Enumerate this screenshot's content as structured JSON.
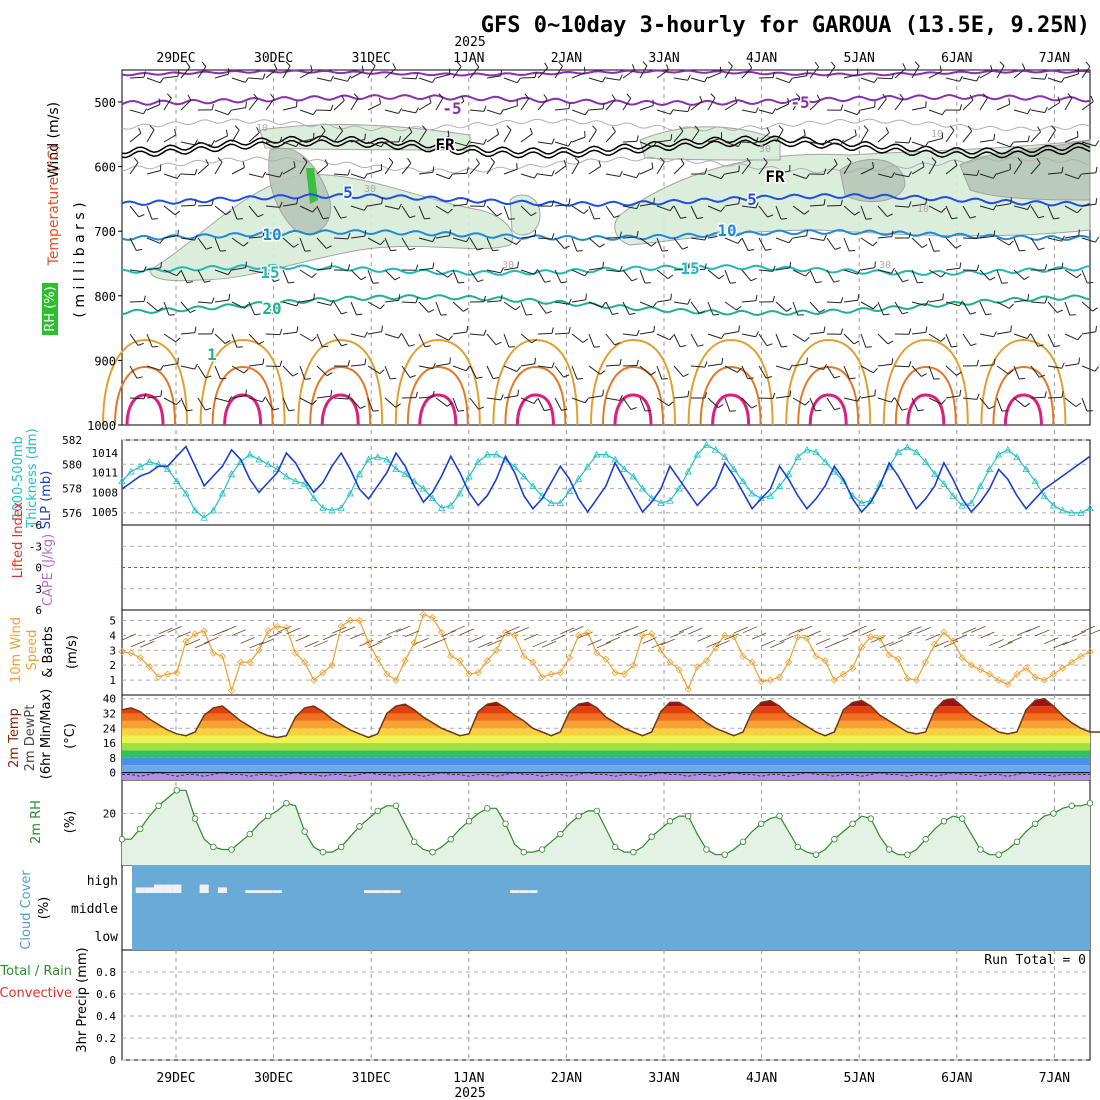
{
  "title": "GFS 0~10day 3-hourly for GAROUA (13.5E, 9.25N)",
  "year_label": "2025",
  "dates": [
    "29DEC",
    "30DEC",
    "31DEC",
    "1JAN",
    "2JAN",
    "3JAN",
    "4JAN",
    "5JAN",
    "6JAN",
    "7JAN"
  ],
  "panels": {
    "upper": {
      "ylabel_wind": "Wind (m/s)",
      "ylabel_temp": "Temperature (°C)",
      "ylabel_rh": "RH (%)",
      "ylabel_mb": "( m i l l i b a r s )",
      "pressure_ticks": [
        "500",
        "600",
        "700",
        "800",
        "900",
        "1000"
      ],
      "contour_labels": [
        "-5",
        "-5",
        "FR",
        "FR",
        "5",
        "5",
        "10",
        "10",
        "15",
        "15",
        "20",
        "1",
        "10",
        "30",
        "10",
        "30",
        "30",
        "30",
        "10"
      ]
    },
    "thick": {
      "ylabel_left": "1000-500mb",
      "ylabel_left2": "Thickness (dm)",
      "ylabel_right": "SLP (mb)",
      "thick_ticks": [
        "582",
        "580",
        "578",
        "576"
      ],
      "slp_ticks": [
        "1014",
        "1011",
        "1008",
        "1005"
      ]
    },
    "li": {
      "ylabel_li": "Lifted Index",
      "ylabel_cape": "CAPE (J/kg)",
      "ticks": [
        "-6",
        "-3",
        "0",
        "3",
        "6"
      ]
    },
    "wind10": {
      "ylabel1": "10m Wind",
      "ylabel2": "Speed",
      "ylabel3": "& Barbs",
      "units": "(m/s)",
      "ticks": [
        "5",
        "4",
        "3",
        "2",
        "1"
      ]
    },
    "temp": {
      "ylabel1": "2m Temp",
      "ylabel2": "2m DewPt",
      "ylabel3": "(6hr Min/Max)",
      "units": "(°C)",
      "ticks": [
        "40",
        "32",
        "24",
        "16",
        "8",
        "0"
      ]
    },
    "rh": {
      "ylabel": "2m RH",
      "units": "(%)",
      "ticks": [
        "20"
      ]
    },
    "cloud": {
      "ylabel": "Cloud Cover",
      "units": "(%)",
      "levels": [
        "high",
        "middle",
        "low"
      ]
    },
    "precip": {
      "ylabel_total": "Total / Rain",
      "ylabel_conv": "Convective",
      "ylabel_main": "3hr Precip (mm)",
      "run_total": "Run Total = 0",
      "ticks": [
        "0.8",
        "0.6",
        "0.4",
        "0.2",
        "0"
      ]
    }
  },
  "chart_data": {
    "type": "line",
    "x_start": "28DEC 06Z",
    "step_hours": 3,
    "series": [
      {
        "name": "1000-500mb Thickness (dm)",
        "color": "#20c0c8",
        "values": [
          578.6,
          579.4,
          579.8,
          580.2,
          580.0,
          579.6,
          578.6,
          577.6,
          576.2,
          575.6,
          576.2,
          577.6,
          579.2,
          580.2,
          580.8,
          580.4,
          580.0,
          579.6,
          579.0,
          578.6,
          578.4,
          577.2,
          576.4,
          576.2,
          576.4,
          577.6,
          579.2,
          580.4,
          580.6,
          580.4,
          579.6,
          579.2,
          578.6,
          578.0,
          577.2,
          576.4,
          576.6,
          577.6,
          579.0,
          580.2,
          580.8,
          580.8,
          580.4,
          579.8,
          579.0,
          578.2,
          577.4,
          576.8,
          576.8,
          577.8,
          578.8,
          579.8,
          580.8,
          580.8,
          580.4,
          579.6,
          579.0,
          578.0,
          577.2,
          576.8,
          577.0,
          578.0,
          579.4,
          580.8,
          581.6,
          581.2,
          580.6,
          579.6,
          578.6,
          577.6,
          577.2,
          577.4,
          578.2,
          579.2,
          580.6,
          581.2,
          581.0,
          580.2,
          579.4,
          578.6,
          577.4,
          576.8,
          577.0,
          578.4,
          579.8,
          581.0,
          581.4,
          581.0,
          580.2,
          579.2,
          578.4,
          577.4,
          576.6,
          576.8,
          578.2,
          579.6,
          580.8,
          581.2,
          580.6,
          579.6,
          578.6,
          577.4,
          576.6,
          576.2,
          576.0,
          576.0,
          576.4
        ]
      },
      {
        "name": "SLP (mb)",
        "color": "#1a3fd0",
        "values": [
          1008.5,
          1009.5,
          1010.5,
          1011.0,
          1012.0,
          1012.0,
          1013.5,
          1015.0,
          1012.0,
          1009.0,
          1010.5,
          1012.0,
          1014.5,
          1013.0,
          1010.0,
          1008.0,
          1009.5,
          1011.0,
          1014.0,
          1012.5,
          1010.0,
          1008.0,
          1009.5,
          1012.0,
          1014.0,
          1011.5,
          1008.5,
          1007.0,
          1009.0,
          1011.0,
          1014.0,
          1012.0,
          1009.0,
          1006.5,
          1008.0,
          1010.5,
          1013.5,
          1011.0,
          1008.0,
          1006.0,
          1007.5,
          1010.0,
          1013.5,
          1011.0,
          1007.5,
          1005.5,
          1007.0,
          1009.5,
          1012.0,
          1010.0,
          1007.0,
          1005.0,
          1007.0,
          1009.0,
          1012.5,
          1010.0,
          1007.5,
          1005.0,
          1006.5,
          1008.5,
          1012.0,
          1010.0,
          1008.0,
          1006.0,
          1007.5,
          1009.0,
          1012.5,
          1010.5,
          1008.0,
          1005.5,
          1007.0,
          1008.5,
          1012.0,
          1010.0,
          1007.5,
          1005.5,
          1007.0,
          1009.0,
          1012.0,
          1010.0,
          1007.0,
          1005.0,
          1006.5,
          1009.0,
          1012.5,
          1010.5,
          1008.0,
          1005.5,
          1007.0,
          1009.0,
          1012.5,
          1010.0,
          1007.0,
          1005.0,
          1006.5,
          1008.5,
          1011.5,
          1010.0,
          1007.5,
          1005.5,
          1007.0,
          1008.5,
          1009.5,
          1010.5,
          1011.5,
          1012.5,
          1013.5
        ]
      },
      {
        "name": "10m Wind Speed (m/s)",
        "color": "#f0a030",
        "values": [
          2.9,
          2.8,
          2.5,
          1.9,
          1.2,
          1.4,
          1.5,
          3.6,
          4.1,
          4.3,
          2.8,
          2.6,
          0.3,
          2.2,
          2.2,
          3.0,
          4.3,
          4.6,
          4.5,
          2.8,
          2.2,
          1.0,
          1.5,
          2.0,
          4.6,
          5.0,
          5.0,
          3.5,
          2.4,
          1.4,
          1.0,
          2.3,
          3.5,
          5.4,
          5.2,
          4.2,
          2.6,
          2.3,
          1.4,
          1.5,
          2.3,
          3.0,
          4.2,
          4.0,
          2.6,
          2.2,
          1.2,
          1.4,
          1.5,
          2.5,
          4.0,
          4.2,
          2.8,
          2.4,
          1.5,
          1.4,
          2.0,
          4.0,
          4.1,
          3.0,
          2.2,
          1.7,
          0.4,
          1.9,
          2.3,
          3.2,
          4.0,
          3.9,
          2.6,
          2.2,
          0.9,
          1.0,
          1.2,
          2.2,
          3.9,
          3.8,
          2.6,
          2.3,
          1.0,
          1.4,
          1.8,
          3.2,
          3.9,
          3.8,
          2.7,
          2.4,
          1.1,
          1.0,
          2.2,
          3.4,
          4.2,
          3.6,
          2.5,
          2.0,
          1.7,
          1.4,
          1.0,
          0.7,
          1.4,
          1.8,
          1.2,
          1.0,
          1.4,
          1.8,
          2.2,
          2.6,
          2.9
        ]
      },
      {
        "name": "2m Temp (°C)",
        "color": "#8b2500",
        "values": [
          34,
          35,
          33,
          29,
          26,
          23,
          21,
          20,
          22,
          31,
          35,
          36,
          32,
          28,
          25,
          22,
          20,
          19,
          20,
          30,
          35,
          36,
          33,
          29,
          26,
          23,
          21,
          19,
          21,
          32,
          36,
          37,
          34,
          30,
          27,
          24,
          22,
          20,
          21,
          33,
          37,
          38,
          35,
          31,
          28,
          24,
          22,
          20,
          22,
          33,
          37,
          38,
          35,
          30,
          27,
          24,
          22,
          20,
          22,
          33,
          38,
          38,
          35,
          31,
          27,
          24,
          22,
          20,
          22,
          33,
          38,
          39,
          36,
          31,
          28,
          25,
          22,
          20,
          22,
          34,
          38,
          39,
          36,
          31,
          28,
          25,
          22,
          21,
          22,
          34,
          39,
          40,
          36,
          31,
          28,
          25,
          22,
          21,
          22,
          34,
          39,
          40,
          36,
          31,
          27,
          24,
          22,
          22,
          21
        ]
      },
      {
        "name": "2m DewPt (°C)",
        "color": "#4a4a4a",
        "values": [
          -1,
          -1,
          -2,
          -1,
          0,
          -1,
          -2,
          -1,
          -1,
          -2,
          -1,
          0,
          -1,
          -1,
          -2,
          -1,
          -1,
          -2,
          -1,
          0,
          -1,
          -1,
          -2,
          -1,
          -1,
          -2,
          -1,
          0,
          -1,
          -1,
          -2,
          -1,
          -1,
          -2,
          -1,
          0,
          -1,
          -1,
          -2,
          -1,
          -1,
          -2,
          -1,
          0,
          -1,
          -1,
          -2,
          -1,
          -1,
          -2,
          -1,
          0,
          -1,
          -1,
          -2,
          -1,
          -1,
          -2,
          -1,
          0,
          -1,
          -1,
          -2,
          -1,
          -1,
          -2,
          -1,
          0,
          -1,
          -1,
          -2,
          -1,
          -1,
          -2,
          -1,
          0,
          -1,
          -1,
          -2,
          -1,
          -1,
          -2,
          -1,
          0,
          -1,
          -1,
          -2,
          -1,
          -1,
          -2,
          -1,
          0,
          -1,
          -1,
          -2,
          -1,
          -1,
          -2,
          -1,
          0,
          -1,
          -1,
          -2,
          -1,
          -1,
          -1,
          -1
        ]
      },
      {
        "name": "2m RH (%)",
        "color": "#2d8a2d",
        "values": [
          10,
          10,
          14,
          19,
          23,
          26,
          29,
          29,
          18,
          10,
          7,
          6,
          6,
          9,
          12,
          16,
          19,
          21,
          24,
          23,
          13,
          7,
          5,
          5,
          7,
          11,
          15,
          18,
          21,
          23,
          23,
          16,
          9,
          6,
          5,
          7,
          10,
          14,
          17,
          20,
          22,
          22,
          16,
          8,
          5,
          5,
          6,
          9,
          12,
          16,
          19,
          21,
          21,
          14,
          7,
          5,
          5,
          7,
          11,
          14,
          17,
          19,
          19,
          12,
          6,
          4,
          4,
          6,
          9,
          13,
          16,
          18,
          19,
          13,
          7,
          5,
          4,
          6,
          10,
          13,
          16,
          19,
          18,
          11,
          6,
          4,
          4,
          6,
          10,
          14,
          17,
          19,
          18,
          12,
          6,
          4,
          4,
          6,
          9,
          13,
          16,
          19,
          20,
          22,
          23,
          23,
          24
        ]
      },
      {
        "name": "Cloud Cover high (%)",
        "color": "#6aaad6",
        "values": [
          100,
          100,
          80,
          80,
          70,
          70,
          70,
          100,
          100,
          70,
          100,
          80,
          100,
          100,
          90,
          90,
          90,
          90,
          100,
          100,
          100,
          100,
          100,
          100,
          100,
          100,
          100,
          90,
          90,
          90,
          90,
          100,
          100,
          100,
          100,
          100,
          100,
          100,
          100,
          100,
          100,
          100,
          100,
          90,
          90,
          90,
          100,
          100,
          100,
          100,
          100,
          100,
          100,
          100,
          100,
          100,
          100,
          100,
          100,
          100,
          100,
          100,
          100,
          100,
          100,
          100,
          100,
          100,
          100,
          100,
          100,
          100,
          100,
          100,
          100,
          100,
          100,
          100,
          100,
          100,
          100,
          100,
          100,
          100,
          100,
          100,
          100,
          100,
          100,
          100,
          100,
          100,
          100,
          100,
          100,
          100,
          100,
          100,
          100,
          100,
          100,
          100,
          100,
          100,
          100,
          100,
          100
        ]
      },
      {
        "name": "3hr Precip (mm)",
        "color": "#2d8a2d",
        "values": [
          0,
          0,
          0,
          0,
          0,
          0,
          0,
          0,
          0,
          0,
          0,
          0,
          0,
          0,
          0,
          0,
          0,
          0,
          0,
          0,
          0,
          0,
          0,
          0,
          0,
          0,
          0,
          0,
          0,
          0,
          0,
          0,
          0,
          0,
          0,
          0,
          0,
          0,
          0,
          0,
          0,
          0,
          0,
          0,
          0,
          0,
          0,
          0,
          0,
          0,
          0,
          0,
          0,
          0,
          0,
          0,
          0,
          0,
          0,
          0,
          0,
          0,
          0,
          0,
          0,
          0,
          0,
          0,
          0,
          0,
          0,
          0,
          0,
          0,
          0,
          0,
          0,
          0,
          0,
          0,
          0,
          0,
          0,
          0,
          0,
          0,
          0,
          0,
          0,
          0,
          0,
          0,
          0,
          0,
          0,
          0,
          0,
          0,
          0,
          0,
          0,
          0,
          0,
          0,
          0,
          0,
          0
        ]
      }
    ],
    "panels_ylim": {
      "thickness": [
        575,
        582
      ],
      "slp": [
        1003,
        1016
      ],
      "lifted_index": [
        -6,
        6
      ],
      "wind10": [
        0,
        5.7
      ],
      "temp2m": [
        -4,
        42
      ],
      "rh2m": [
        0,
        33
      ],
      "precip": [
        0,
        1
      ]
    },
    "contours_temperature_C": [
      -5,
      0,
      5,
      10,
      15,
      20
    ],
    "grid": true
  }
}
